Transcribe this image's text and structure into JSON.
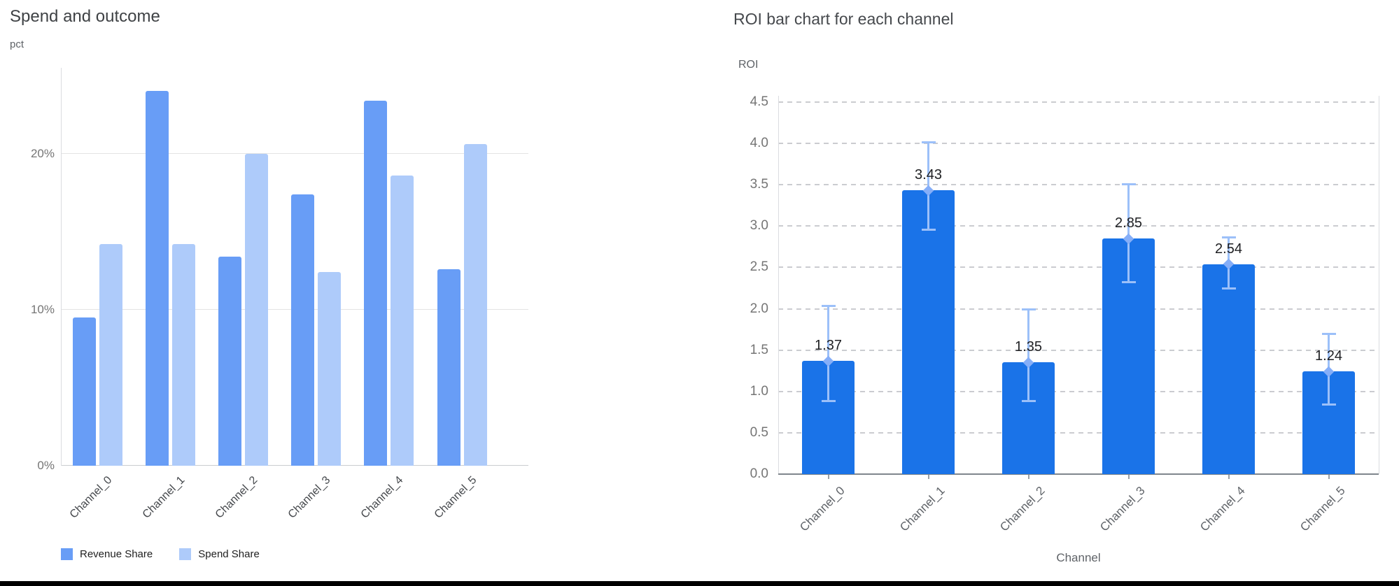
{
  "page": {
    "background": "#ffffff",
    "bottom_border_color": "#000000"
  },
  "chart_data": [
    {
      "type": "bar",
      "title": "Spend and outcome",
      "xlabel": "",
      "ylabel": "pct",
      "categories": [
        "Channel_0",
        "Channel_1",
        "Channel_2",
        "Channel_3",
        "Channel_4",
        "Channel_5"
      ],
      "series": [
        {
          "name": "Revenue Share",
          "color": "#689df6",
          "values": [
            9.5,
            24.0,
            13.4,
            17.4,
            23.4,
            12.6
          ]
        },
        {
          "name": "Spend Share",
          "color": "#aecbfa",
          "values": [
            14.2,
            14.2,
            20.0,
            12.4,
            18.6,
            20.6
          ]
        }
      ],
      "ylim": [
        0,
        25.5
      ],
      "yticks": [
        {
          "v": 0,
          "label": "0%"
        },
        {
          "v": 10,
          "label": "10%"
        },
        {
          "v": 20,
          "label": "20%"
        }
      ],
      "grid": "solid",
      "legend_position": "bottom"
    },
    {
      "type": "bar",
      "title": "ROI bar chart for each channel",
      "xlabel": "Channel",
      "ylabel": "ROI",
      "categories": [
        "Channel_0",
        "Channel_1",
        "Channel_2",
        "Channel_3",
        "Channel_4",
        "Channel_5"
      ],
      "values": [
        1.37,
        3.43,
        1.35,
        2.85,
        2.54,
        1.24
      ],
      "value_labels": [
        "1.37",
        "3.43",
        "1.35",
        "2.85",
        "2.54",
        "1.24"
      ],
      "error_low": [
        0.88,
        2.95,
        0.88,
        2.32,
        2.24,
        0.84
      ],
      "error_high": [
        2.04,
        4.02,
        2.0,
        3.51,
        2.87,
        1.7
      ],
      "bar_color": "#1a73e8",
      "error_color": "#9cc0f9",
      "marker_color": "#85aef8",
      "ylim": [
        0,
        4.5
      ],
      "ytick_labels": [
        "0.0",
        "0.5",
        "1.0",
        "1.5",
        "2.0",
        "2.5",
        "3.0",
        "3.5",
        "4.0",
        "4.5"
      ],
      "grid": "dashed",
      "legend_position": "none"
    }
  ]
}
